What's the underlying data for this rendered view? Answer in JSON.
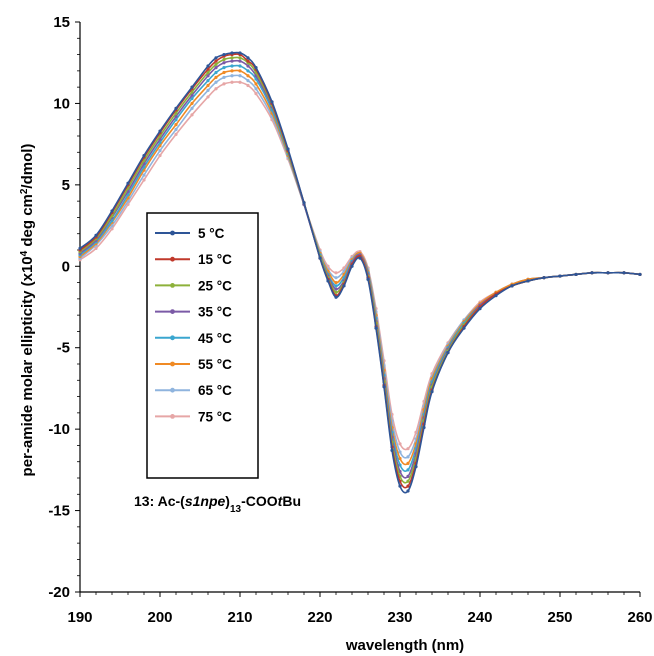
{
  "chart_data": {
    "type": "line",
    "xlabel": "wavelength (nm)",
    "ylabel_parts": {
      "pre": "per-amide molar ellipticity (x10",
      "sup": "4",
      "mid": " deg cm",
      "sup2": "2",
      "post": "/dmol)"
    },
    "xlim": [
      190,
      260
    ],
    "ylim": [
      -20,
      15
    ],
    "xticks": [
      190,
      200,
      210,
      220,
      230,
      240,
      250,
      260
    ],
    "yticks": [
      -20,
      -15,
      -10,
      -5,
      0,
      5,
      10,
      15
    ],
    "grid": false,
    "legend_position": "center-left",
    "annotation": {
      "pre": "13: Ac-(",
      "italic": "s1npe",
      "sub": "13",
      "post1": "-COO",
      "italic2": "t",
      "post2": "Bu"
    },
    "x": [
      190,
      192,
      194,
      196,
      198,
      200,
      202,
      204,
      206,
      207,
      208,
      209,
      210,
      211,
      212,
      214,
      216,
      218,
      220,
      221,
      222,
      223,
      224,
      225,
      226,
      227,
      228,
      229,
      230,
      231,
      232,
      233,
      234,
      236,
      238,
      240,
      242,
      244,
      246,
      248,
      250,
      252,
      254,
      256,
      258,
      260
    ],
    "series": [
      {
        "name": "5 °C",
        "color": "#2e5597",
        "values": [
          1.1,
          1.9,
          3.4,
          5.1,
          6.8,
          8.3,
          9.7,
          11.0,
          12.3,
          12.8,
          13.0,
          13.1,
          13.1,
          12.8,
          12.2,
          10.1,
          7.2,
          3.9,
          0.5,
          -0.9,
          -1.9,
          -1.2,
          0.0,
          0.5,
          -0.8,
          -3.8,
          -7.4,
          -11.3,
          -13.5,
          -13.8,
          -12.3,
          -9.9,
          -7.7,
          -5.3,
          -3.8,
          -2.6,
          -1.8,
          -1.2,
          -0.9,
          -0.7,
          -0.6,
          -0.5,
          -0.4,
          -0.4,
          -0.4,
          -0.5
        ]
      },
      {
        "name": "15 °C",
        "color": "#c0392b",
        "values": [
          1.0,
          1.8,
          3.3,
          5.0,
          6.7,
          8.2,
          9.6,
          10.9,
          12.1,
          12.6,
          12.9,
          13.0,
          13.0,
          12.6,
          12.1,
          10.0,
          7.1,
          3.9,
          0.5,
          -0.8,
          -1.8,
          -1.1,
          0.1,
          0.6,
          -0.7,
          -3.7,
          -7.3,
          -11.1,
          -13.2,
          -13.5,
          -12.1,
          -9.7,
          -7.6,
          -5.3,
          -3.7,
          -2.5,
          -1.7,
          -1.2,
          -0.9,
          -0.7,
          -0.6,
          -0.5,
          -0.4,
          -0.4,
          -0.4,
          -0.5
        ]
      },
      {
        "name": "25 °C",
        "color": "#8db13a",
        "values": [
          0.9,
          1.7,
          3.1,
          4.8,
          6.5,
          8.0,
          9.4,
          10.7,
          11.9,
          12.4,
          12.7,
          12.8,
          12.8,
          12.5,
          11.9,
          9.9,
          7.0,
          3.9,
          0.6,
          -0.7,
          -1.6,
          -1.0,
          0.1,
          0.6,
          -0.6,
          -3.5,
          -7.1,
          -10.8,
          -12.9,
          -13.2,
          -11.8,
          -9.5,
          -7.4,
          -5.2,
          -3.6,
          -2.5,
          -1.7,
          -1.2,
          -0.9,
          -0.7,
          -0.6,
          -0.5,
          -0.4,
          -0.4,
          -0.4,
          -0.5
        ]
      },
      {
        "name": "35 °C",
        "color": "#7b5aa6",
        "values": [
          0.8,
          1.6,
          3.0,
          4.6,
          6.3,
          7.8,
          9.2,
          10.5,
          11.7,
          12.2,
          12.5,
          12.6,
          12.6,
          12.3,
          11.7,
          9.8,
          7.0,
          3.8,
          0.6,
          -0.6,
          -1.4,
          -0.9,
          0.2,
          0.7,
          -0.5,
          -3.4,
          -6.9,
          -10.5,
          -12.6,
          -12.9,
          -11.5,
          -9.3,
          -7.3,
          -5.1,
          -3.6,
          -2.4,
          -1.7,
          -1.2,
          -0.9,
          -0.7,
          -0.6,
          -0.5,
          -0.4,
          -0.4,
          -0.4,
          -0.5
        ]
      },
      {
        "name": "45 °C",
        "color": "#3aa6cf",
        "values": [
          0.7,
          1.5,
          2.8,
          4.4,
          6.1,
          7.6,
          9.0,
          10.3,
          11.4,
          11.9,
          12.2,
          12.3,
          12.3,
          12.0,
          11.5,
          9.6,
          6.9,
          3.8,
          0.7,
          -0.5,
          -1.2,
          -0.7,
          0.3,
          0.7,
          -0.4,
          -3.2,
          -6.7,
          -10.2,
          -12.2,
          -12.5,
          -11.2,
          -9.1,
          -7.1,
          -5.0,
          -3.5,
          -2.4,
          -1.7,
          -1.2,
          -0.9,
          -0.7,
          -0.6,
          -0.5,
          -0.4,
          -0.4,
          -0.4,
          -0.5
        ]
      },
      {
        "name": "55 °C",
        "color": "#f08a24",
        "values": [
          0.6,
          1.4,
          2.7,
          4.2,
          5.9,
          7.4,
          8.7,
          10.0,
          11.1,
          11.6,
          11.9,
          12.0,
          12.0,
          11.7,
          11.2,
          9.4,
          6.8,
          3.8,
          0.8,
          -0.3,
          -1.0,
          -0.5,
          0.4,
          0.8,
          -0.3,
          -3.0,
          -6.4,
          -9.9,
          -11.8,
          -12.1,
          -10.9,
          -8.8,
          -6.9,
          -4.9,
          -3.4,
          -2.3,
          -1.6,
          -1.1,
          -0.8,
          -0.7,
          -0.6,
          -0.5,
          -0.4,
          -0.4,
          -0.4,
          -0.5
        ]
      },
      {
        "name": "65 °C",
        "color": "#8fb4de",
        "values": [
          0.5,
          1.3,
          2.5,
          4.0,
          5.6,
          7.1,
          8.4,
          9.7,
          10.8,
          11.3,
          11.6,
          11.7,
          11.7,
          11.4,
          10.9,
          9.2,
          6.7,
          3.8,
          0.9,
          -0.2,
          -0.7,
          -0.3,
          0.5,
          0.8,
          -0.2,
          -2.8,
          -6.1,
          -9.5,
          -11.4,
          -11.7,
          -10.6,
          -8.6,
          -6.8,
          -4.8,
          -3.3,
          -2.3,
          -1.6,
          -1.1,
          -0.8,
          -0.7,
          -0.6,
          -0.5,
          -0.4,
          -0.4,
          -0.4,
          -0.5
        ]
      },
      {
        "name": "75 °C",
        "color": "#e6a6a6",
        "values": [
          0.4,
          1.1,
          2.3,
          3.8,
          5.3,
          6.8,
          8.1,
          9.3,
          10.4,
          10.9,
          11.2,
          11.3,
          11.3,
          11.1,
          10.6,
          9.0,
          6.6,
          3.8,
          1.0,
          0.0,
          -0.4,
          -0.1,
          0.6,
          0.9,
          -0.1,
          -2.6,
          -5.8,
          -9.1,
          -10.9,
          -11.2,
          -10.2,
          -8.3,
          -6.6,
          -4.7,
          -3.3,
          -2.2,
          -1.6,
          -1.1,
          -0.8,
          -0.7,
          -0.6,
          -0.5,
          -0.4,
          -0.4,
          -0.4,
          -0.5
        ]
      }
    ]
  }
}
